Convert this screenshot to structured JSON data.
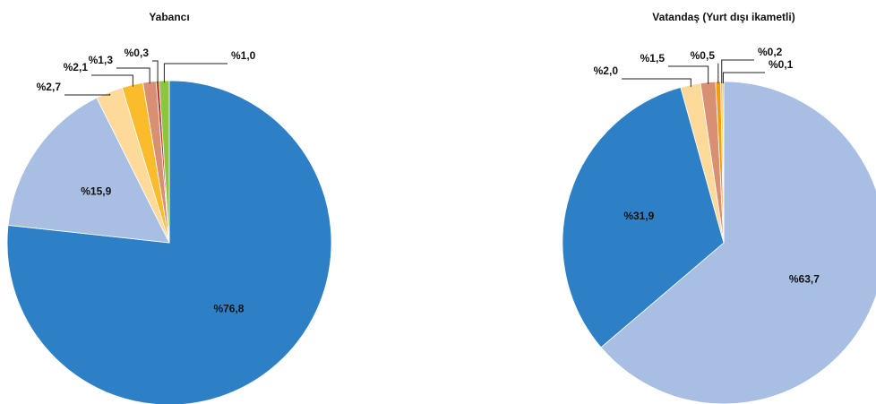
{
  "chart_data": [
    {
      "type": "pie",
      "title": "Yabancı",
      "values": [
        76.8,
        15.9,
        2.7,
        2.1,
        1.3,
        0.3,
        1.0
      ],
      "value_labels": [
        "%76,8",
        "%15,9",
        "%2,7",
        "%2,1",
        "%1,3",
        "%0,3",
        "%1,0"
      ],
      "colors": [
        "#2e80c6",
        "#a8bfe3",
        "#fdd99a",
        "#fbbc2c",
        "#d98f74",
        "#c0392b",
        "#8cc63f"
      ]
    },
    {
      "type": "pie",
      "title": "Vatandaş (Yurt dışı ikametli)",
      "values": [
        63.7,
        31.9,
        2.0,
        1.5,
        0.5,
        0.2,
        0.1
      ],
      "value_labels": [
        "%63,7",
        "%31,9",
        "%2,0",
        "%1,5",
        "%0,5",
        "%0,2",
        "%0,1"
      ],
      "colors": [
        "#a8bfe3",
        "#2e80c6",
        "#fdd99a",
        "#d98f74",
        "#f39c12",
        "#fbbc2c",
        "#c0392b"
      ]
    }
  ]
}
